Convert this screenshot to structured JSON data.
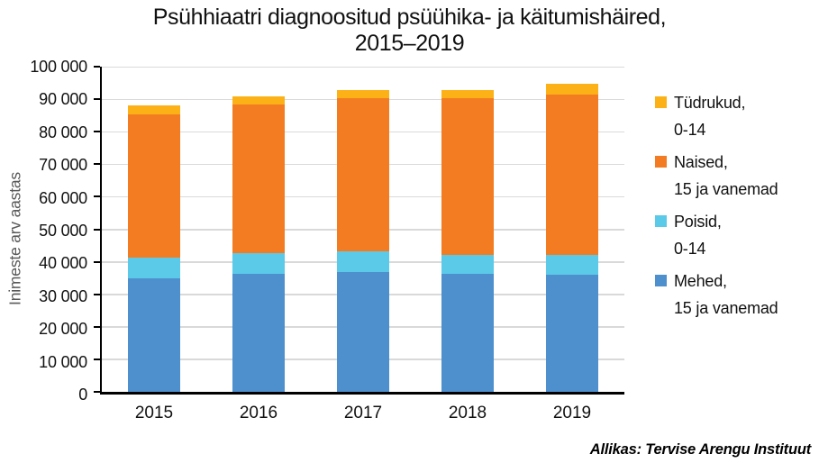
{
  "chart_data": {
    "type": "bar",
    "stacked": true,
    "title": "Psühhiaatri diagnoositud psüühika- ja käitumishäired, 2015–2019",
    "title_lines": [
      "Psühhiaatri diagnoositud psüühika- ja käitumishäired,",
      "2015–2019"
    ],
    "ylabel": "Inimeste arv aastas",
    "xlabel": "",
    "categories": [
      "2015",
      "2016",
      "2017",
      "2018",
      "2019"
    ],
    "series": [
      {
        "key": "mehed",
        "name": "Mehed, 15 ja vanemad",
        "color": "#4E90CD",
        "values": [
          35000,
          36300,
          36800,
          36300,
          36000
        ]
      },
      {
        "key": "poisid",
        "name": "Poisid, 0-14",
        "color": "#5BC9E8",
        "values": [
          6200,
          6300,
          6500,
          5800,
          6100
        ]
      },
      {
        "key": "naised",
        "name": "Naised, 15 ja vanemad",
        "color": "#F37C22",
        "values": [
          44200,
          45900,
          46900,
          48100,
          49300
        ]
      },
      {
        "key": "tydrukud",
        "name": "Tüdrukud, 0-14",
        "color": "#FCB116",
        "values": [
          2800,
          2500,
          2700,
          2700,
          3300
        ]
      }
    ],
    "totals": [
      88200,
      91000,
      92900,
      92900,
      94700
    ],
    "ylim": [
      0,
      100000
    ],
    "ytick_step": 10000,
    "ytick_labels": [
      "0",
      "10 000",
      "20 000",
      "30 000",
      "40 000",
      "50 000",
      "60 000",
      "70 000",
      "80 000",
      "90 000",
      "100 000"
    ],
    "grid": "horizontal",
    "gridline_color": "#D9D9D9",
    "axis_color": "#000000",
    "legend_position": "right"
  },
  "legend": {
    "items": [
      {
        "key": "tydrukud",
        "line1": "Tüdrukud,",
        "line2": "0-14",
        "color": "#FCB116"
      },
      {
        "key": "naised",
        "line1": "Naised,",
        "line2": "15 ja vanemad",
        "color": "#F37C22"
      },
      {
        "key": "poisid",
        "line1": "Poisid,",
        "line2": "0-14",
        "color": "#5BC9E8"
      },
      {
        "key": "mehed",
        "line1": "Mehed,",
        "line2": "15 ja vanemad",
        "color": "#4E90CD"
      }
    ]
  },
  "source": "Allikas: Tervise Arengu Instituut"
}
